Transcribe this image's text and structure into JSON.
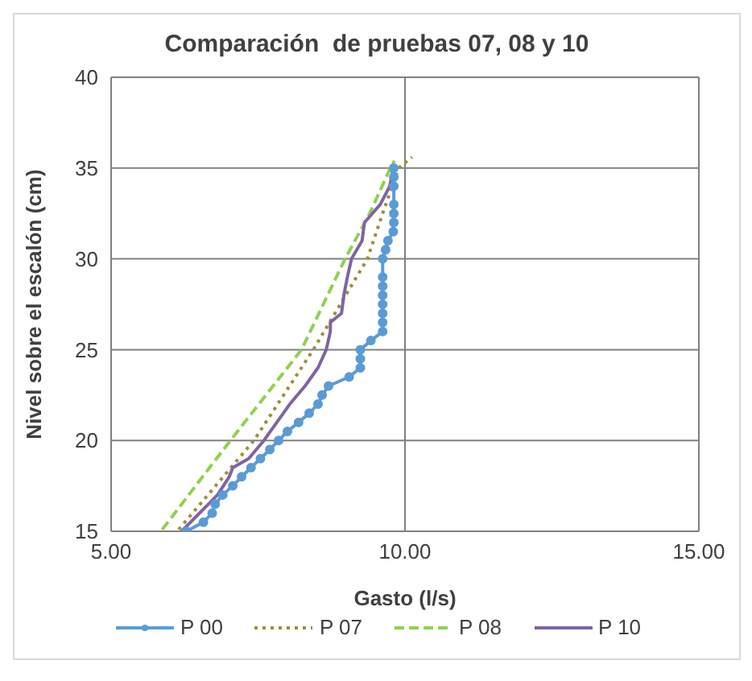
{
  "chart_data": {
    "type": "line",
    "title": "Comparación  de pruebas 07, 08 y 10",
    "xlabel": "Gasto (l/s)",
    "ylabel": "Nivel sobre el escalón (cm)",
    "xlim": [
      5,
      15
    ],
    "xticks": [
      {
        "value": 5,
        "label": "5.00"
      },
      {
        "value": 10,
        "label": "10.00"
      },
      {
        "value": 15,
        "label": "15.00"
      }
    ],
    "ylim": [
      15,
      40
    ],
    "yticks": [
      15,
      20,
      25,
      30,
      35,
      40
    ],
    "grid": true,
    "legend": "bottom",
    "series": [
      {
        "name": "P 00",
        "color": "#5b9bd5",
        "marker": "circle",
        "line_style": "solid",
        "x": [
          6.28,
          6.57,
          6.72,
          6.77,
          6.9,
          7.07,
          7.22,
          7.38,
          7.54,
          7.7,
          7.85,
          8.0,
          8.19,
          8.37,
          8.52,
          8.59,
          8.7,
          9.05,
          9.24,
          9.24,
          9.24,
          9.42,
          9.62,
          9.62,
          9.62,
          9.62,
          9.62,
          9.62,
          9.62,
          9.62,
          9.67,
          9.71,
          9.8,
          9.81,
          9.81,
          9.81,
          9.81,
          9.81,
          9.81
        ],
        "values": [
          15,
          15.5,
          16,
          16.5,
          17,
          17.5,
          18,
          18.5,
          19,
          19.5,
          20,
          20.5,
          21,
          21.5,
          22,
          22.5,
          23,
          23.5,
          24,
          24.5,
          25,
          25.5,
          26,
          26.5,
          27,
          27.5,
          28,
          28.5,
          29,
          30,
          30.5,
          31,
          31.5,
          32,
          32.5,
          33,
          34,
          34.5,
          35
        ]
      },
      {
        "name": "P 07",
        "color": "#9c8f3c",
        "marker": "none",
        "line_style": "dotted",
        "x": [
          6.15,
          7.43,
          8.44,
          9.36,
          9.62,
          9.89,
          10.12
        ],
        "values": [
          15.1,
          20,
          25,
          30,
          32.5,
          35,
          35.6
        ]
      },
      {
        "name": "P 08",
        "color": "#92d050",
        "marker": "none",
        "line_style": "dashed",
        "x": [
          5.87,
          7.03,
          8.24,
          8.98,
          9.4,
          9.75,
          9.82
        ],
        "values": [
          15.1,
          20,
          25,
          30,
          32.5,
          35,
          35.4
        ]
      },
      {
        "name": "P 10",
        "color": "#8064a2",
        "marker": "none",
        "line_style": "solid",
        "x": [
          6.2,
          6.81,
          7.01,
          7.07,
          7.34,
          7.6,
          7.82,
          8.04,
          8.3,
          8.52,
          8.66,
          8.73,
          8.73,
          8.92,
          8.96,
          9.02,
          9.09,
          9.27,
          9.31,
          9.58,
          9.74,
          9.8,
          9.8
        ],
        "values": [
          15,
          17,
          18,
          18.5,
          19,
          20,
          21,
          22,
          23,
          24,
          25,
          26,
          26.5,
          27,
          28,
          29,
          30,
          31,
          32,
          33,
          34,
          35,
          35.2
        ]
      }
    ]
  }
}
